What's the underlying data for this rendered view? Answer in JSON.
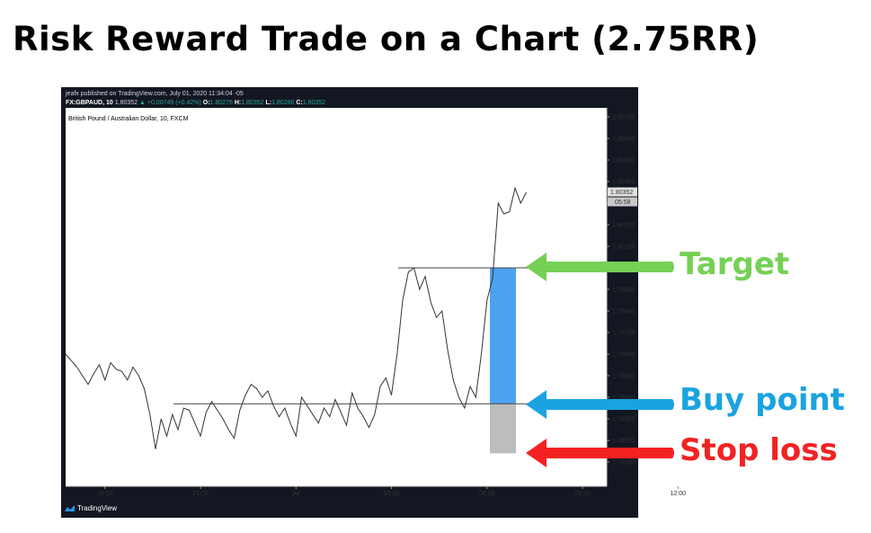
{
  "headline": "Risk Reward Trade on a Chart (2.75RR)",
  "header": {
    "published_line": "jeafx published on TradingView.com, July 01, 2020 11:34:04 -05",
    "symbol": "FX:GBPAUD, 10",
    "last_price": "1.80352",
    "change": "▲ +0.00749 (+0.42%)",
    "o_label": "O:",
    "o_value": "1.80276",
    "h_label": "H:",
    "h_value": "1.80352",
    "l_label": "L:",
    "l_value": "1.80260",
    "c_label": "C:",
    "c_value": "1.80352"
  },
  "brand": "TradingView",
  "colors": {
    "panel_bg": "#ffffff",
    "frame_bg": "#131722",
    "line": "#333333",
    "reward_zone": "#4ca3f0",
    "risk_zone": "#bdbdbd",
    "target": "#76d055",
    "buy": "#1aa3e0",
    "stop": "#f22222"
  },
  "annotations": {
    "target": "Target",
    "buy": "Buy point",
    "stop": "Stop loss"
  },
  "chart_data": {
    "type": "line",
    "title": "British Pound / Australian Dollar, 10, FXCM",
    "ylim": [
      1.7905,
      1.808
    ],
    "y_ticks": [
      "1.80700",
      "1.80600",
      "1.80500",
      "1.80400",
      "1.80300",
      "1.80200",
      "1.80100",
      "1.80000",
      "1.79900",
      "1.79800",
      "1.79700",
      "1.79600",
      "1.79500",
      "1.79400",
      "1.79300",
      "1.79200",
      "1.79100"
    ],
    "y_tick_values": [
      1.807,
      1.806,
      1.805,
      1.804,
      1.803,
      1.802,
      1.801,
      1.8,
      1.799,
      1.798,
      1.797,
      1.796,
      1.795,
      1.794,
      1.793,
      1.792,
      1.791
    ],
    "x_ticks": [
      "18:00",
      "21:00",
      "Jul",
      "03:00",
      "06:00",
      "09:00",
      "12:00"
    ],
    "x_tick_index": [
      7,
      24,
      41,
      58,
      75,
      92,
      109
    ],
    "price_label": "1.80352",
    "countdown": "05:58",
    "series": [
      {
        "values": [
          1.796,
          1.7957,
          1.7954,
          1.795,
          1.7946,
          1.7951,
          1.7955,
          1.7948,
          1.7956,
          1.7953,
          1.7952,
          1.7948,
          1.7954,
          1.795,
          1.7944,
          1.7932,
          1.7916,
          1.793,
          1.7922,
          1.7932,
          1.7925,
          1.7935,
          1.7934,
          1.7928,
          1.7922,
          1.7933,
          1.7938,
          1.7934,
          1.793,
          1.7925,
          1.7921,
          1.7934,
          1.7941,
          1.7946,
          1.7944,
          1.794,
          1.7943,
          1.7936,
          1.7931,
          1.7935,
          1.7928,
          1.7922,
          1.794,
          1.7936,
          1.7932,
          1.7928,
          1.7935,
          1.7931,
          1.7939,
          1.7933,
          1.7927,
          1.7942,
          1.7935,
          1.7931,
          1.7926,
          1.7932,
          1.7945,
          1.7949,
          1.7941,
          1.796,
          1.7985,
          1.7998,
          1.8,
          1.799,
          1.7996,
          1.7984,
          1.7977,
          1.798,
          1.7962,
          1.7948,
          1.794,
          1.7935,
          1.7945,
          1.794,
          1.796,
          1.7985,
          1.7995,
          1.803,
          1.8025,
          1.8026,
          1.8037,
          1.803,
          1.8035
        ],
        "x_index": [
          0,
          1,
          2,
          3,
          4,
          5,
          6,
          7,
          8,
          9,
          10,
          11,
          12,
          13,
          14,
          15,
          16,
          17,
          18,
          19,
          20,
          21,
          22,
          23,
          24,
          25,
          26,
          27,
          28,
          29,
          30,
          31,
          32,
          33,
          34,
          35,
          36,
          37,
          38,
          39,
          40,
          41,
          42,
          43,
          44,
          45,
          46,
          47,
          48,
          49,
          50,
          51,
          52,
          53,
          54,
          55,
          56,
          57,
          58,
          59,
          60,
          61,
          62,
          63,
          64,
          65,
          66,
          67,
          68,
          69,
          70,
          71,
          72,
          73,
          74,
          75,
          76,
          77,
          78,
          79,
          80,
          81,
          82
        ]
      }
    ],
    "levels": {
      "target": 1.8,
      "entry": 1.7937,
      "stop": 1.7914
    },
    "risk_reward": "2.75RR"
  }
}
